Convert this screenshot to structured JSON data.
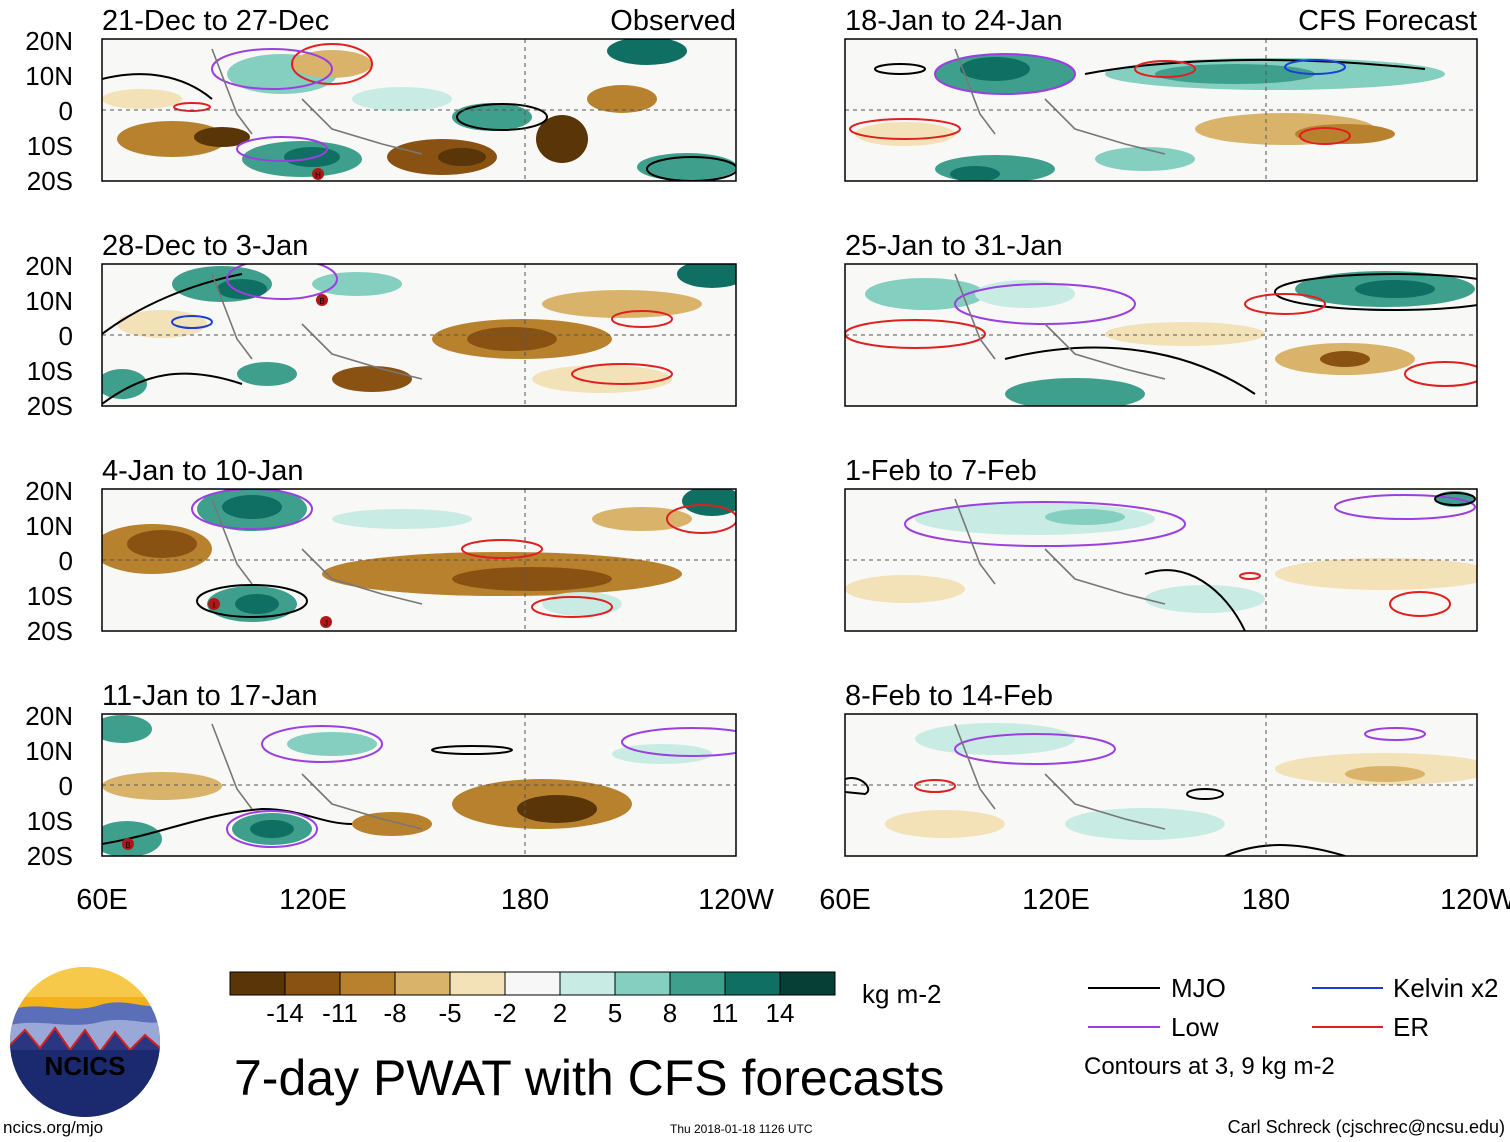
{
  "observed_label": "Observed",
  "forecast_label": "CFS Forecast",
  "observed_panels": [
    {
      "period": "21-Dec to 27-Dec",
      "markers": [
        "H"
      ]
    },
    {
      "period": "28-Dec to 3-Jan",
      "markers": [
        "B"
      ]
    },
    {
      "period": "4-Jan to 10-Jan",
      "markers": [
        "I",
        "J"
      ]
    },
    {
      "period": "11-Jan to 17-Jan",
      "markers": [
        "B"
      ]
    }
  ],
  "forecast_panels": [
    {
      "period": "18-Jan to 24-Jan"
    },
    {
      "period": "25-Jan to 31-Jan"
    },
    {
      "period": "1-Feb to 7-Feb"
    },
    {
      "period": "8-Feb to 14-Feb"
    }
  ],
  "lat_labels": [
    "20N",
    "10N",
    "0",
    "10S",
    "20S"
  ],
  "lon_labels": [
    "60E",
    "120E",
    "180",
    "120W"
  ],
  "colorbar": {
    "ticks": [
      "-14",
      "-11",
      "-8",
      "-5",
      "-2",
      "2",
      "5",
      "8",
      "11",
      "14"
    ],
    "colors": [
      "#5a3508",
      "#8a5212",
      "#b8812e",
      "#d9b36a",
      "#f3e2b8",
      "#f7f7f7",
      "#c8ece4",
      "#84cfbf",
      "#3f9f8d",
      "#0f6f62",
      "#053f36"
    ],
    "unit": "kg m-2"
  },
  "title": "7-day PWAT with CFS forecasts",
  "legend": {
    "items": [
      {
        "label": "MJO",
        "color": "#000000"
      },
      {
        "label": "Kelvin x2",
        "color": "#1a3fd6"
      },
      {
        "label": "Low",
        "color": "#9b3fe0"
      },
      {
        "label": "ER",
        "color": "#e01f1f"
      }
    ],
    "note": "Contours at 3, 9 kg m-2"
  },
  "logo_text": "NCICS",
  "footer_left": "ncics.org/mjo",
  "footer_center": "Thu 2018-01-18 1126 UTC",
  "footer_right": "Carl Schreck (cjschrec@ncsu.edu)"
}
